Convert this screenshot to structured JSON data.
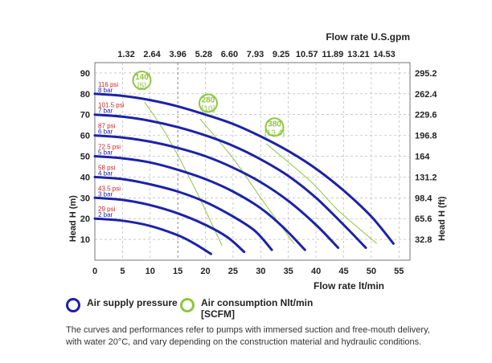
{
  "chart_data": {
    "type": "line",
    "top_axis_title": "Flow rate U.S.gpm",
    "top_ticks": [
      "1.32",
      "2.64",
      "3.96",
      "5.28",
      "6.60",
      "7.93",
      "9.25",
      "10.57",
      "11.89",
      "13.21",
      "14.53"
    ],
    "xlabel": "Flow rate lt/min",
    "x_ticks": [
      "0",
      "5",
      "10",
      "15",
      "20",
      "25",
      "30",
      "35",
      "40",
      "45",
      "50",
      "55"
    ],
    "xlim": [
      0,
      57
    ],
    "ylabel_left": "Head H (m)",
    "left_ticks": [
      "10",
      "20",
      "30",
      "40",
      "50",
      "60",
      "70",
      "80",
      "90"
    ],
    "ylim": [
      0,
      95
    ],
    "ylabel_right": "Head H (ft)",
    "right_ticks": [
      "32.8",
      "65.6",
      "98.4",
      "131.2",
      "164",
      "196.8",
      "229.6",
      "262.4",
      "295.2"
    ],
    "grid": true,
    "pressure_series": [
      {
        "psi": "29 psi",
        "bar": "2 bar",
        "x": [
          0,
          5,
          10,
          15,
          18,
          21
        ],
        "y": [
          20,
          19,
          16.5,
          12,
          8,
          3
        ]
      },
      {
        "psi": "43.5 psi",
        "bar": "3 bar",
        "x": [
          0,
          5,
          10,
          15,
          20,
          24,
          27
        ],
        "y": [
          30,
          29,
          26.5,
          22.5,
          17,
          11,
          4
        ]
      },
      {
        "psi": "58 psi",
        "bar": "4 bar",
        "x": [
          0,
          5,
          10,
          15,
          20,
          25,
          29,
          32
        ],
        "y": [
          40,
          39,
          36.5,
          33,
          28,
          21,
          14,
          5
        ]
      },
      {
        "psi": "72.5 psi",
        "bar": "5 bar",
        "x": [
          0,
          5,
          10,
          15,
          20,
          25,
          30,
          34,
          38
        ],
        "y": [
          50,
          49,
          47,
          43.5,
          39,
          33,
          25,
          16,
          5
        ]
      },
      {
        "psi": "87 psi",
        "bar": "6 bar",
        "x": [
          0,
          5,
          10,
          15,
          20,
          25,
          30,
          35,
          40,
          44
        ],
        "y": [
          60,
          59,
          57,
          54,
          50,
          44.5,
          37.5,
          28.5,
          17,
          6
        ]
      },
      {
        "psi": "101.5 psi",
        "bar": "7 bar",
        "x": [
          0,
          5,
          10,
          15,
          20,
          25,
          30,
          35,
          40,
          45,
          49
        ],
        "y": [
          70,
          69,
          67,
          64,
          60,
          55,
          48.5,
          40.5,
          30,
          17,
          6
        ]
      },
      {
        "psi": "116 psi",
        "bar": "8 bar",
        "x": [
          0,
          5,
          10,
          15,
          20,
          25,
          30,
          35,
          40,
          45,
          50,
          54
        ],
        "y": [
          80,
          79,
          77,
          74,
          70,
          65.5,
          59.5,
          52.5,
          44,
          33.5,
          21,
          8
        ]
      }
    ],
    "air_series": [
      {
        "label": "140",
        "sub": "[5]",
        "label_pos": [
          8.5,
          86.5
        ],
        "x": [
          9,
          13,
          18,
          23
        ],
        "y": [
          76,
          60,
          35,
          7
        ]
      },
      {
        "label": "280",
        "sub": "[10]",
        "label_pos": [
          20.5,
          75.5
        ],
        "x": [
          19,
          25,
          30,
          36
        ],
        "y": [
          68,
          49,
          30,
          8
        ]
      },
      {
        "label": "380",
        "sub": "[13.4]",
        "label_pos": [
          32.5,
          64
        ],
        "x": [
          31,
          39,
          44,
          51
        ],
        "y": [
          56,
          38,
          24,
          8
        ]
      }
    ],
    "colors": {
      "pressure": "#1c22a8",
      "air": "#8ec63f",
      "psi_label": "#d0241e",
      "bar_label": "#1c22a8",
      "grid": "#aaaaaa"
    }
  },
  "legend": {
    "pressure_label": "Air supply pressure",
    "air_label": "Air consumption Nlt/min [SCFM]"
  },
  "note": "The curves and performances refer to pumps with immersed suction and free-mouth delivery, with water 20°C, and vary depending on the construction material and hydraulic conditions."
}
